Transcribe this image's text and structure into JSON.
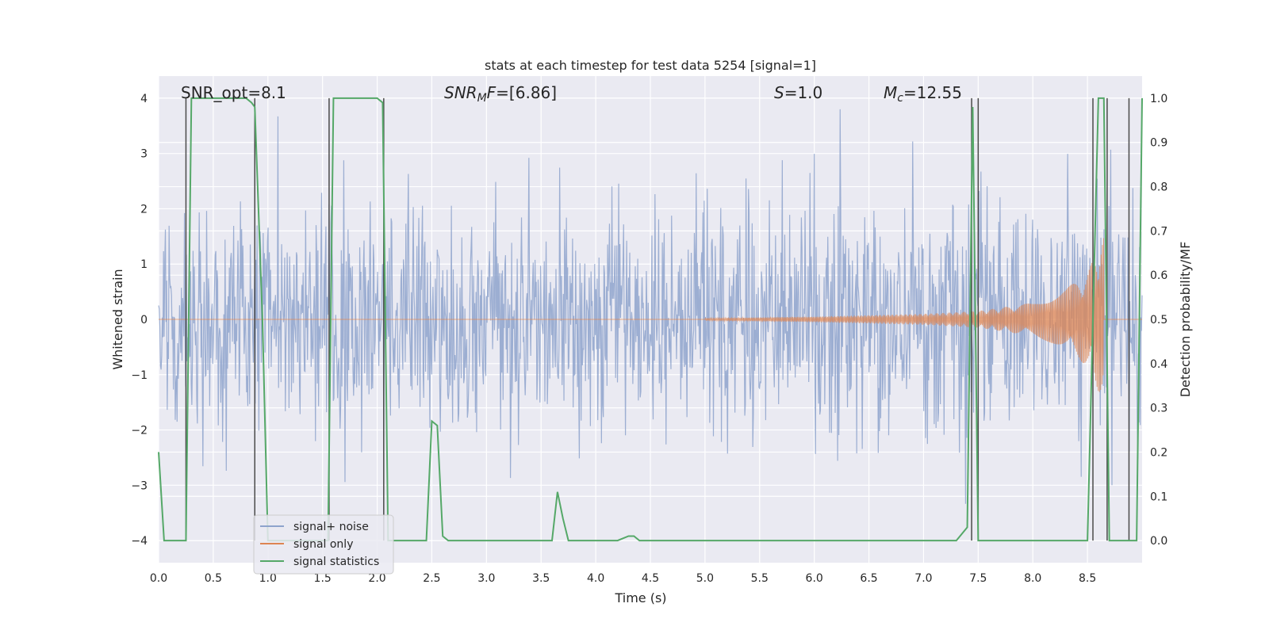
{
  "chart_data": {
    "type": "line",
    "title": "stats at each timestep for test data 5254 [signal=1]",
    "xlabel": "Time (s)",
    "ylabel": "Whitened strain",
    "y2label": "Detection probability/MF",
    "xlim": [
      0.0,
      9.0
    ],
    "ylim": [
      -4.4,
      4.4
    ],
    "y2lim": [
      -0.05,
      1.05
    ],
    "xticks": [
      "0.0",
      "0.5",
      "1.0",
      "1.5",
      "2.0",
      "2.5",
      "3.0",
      "3.5",
      "4.0",
      "4.5",
      "5.0",
      "5.5",
      "6.0",
      "6.5",
      "7.0",
      "7.5",
      "8.0",
      "8.5"
    ],
    "yticks": [
      "−4",
      "−3",
      "−2",
      "−1",
      "0",
      "1",
      "2",
      "3",
      "4"
    ],
    "y2ticks": [
      "0.0",
      "0.1",
      "0.2",
      "0.3",
      "0.4",
      "0.5",
      "0.6",
      "0.7",
      "0.8",
      "0.9",
      "1.0"
    ],
    "legend_position": "lower-left",
    "annotations": {
      "snr_opt": "SNR_opt=8.1",
      "snr_mf_prefix": "SNR",
      "snr_mf_sub": "M",
      "snr_mf_mid": "F",
      "snr_mf_value": "=[6.86]",
      "s_prefix": "S",
      "s_value": "=1.0",
      "mc_prefix": "M",
      "mc_sub": "c",
      "mc_value": "=12.55"
    },
    "colors": {
      "noise": "#8ea3cc",
      "signal": "#dd8452",
      "stats": "#55a868",
      "vline": "#4a4a4a",
      "plot_bg": "#eaeaf2"
    },
    "series": [
      {
        "name": "signal+ noise",
        "note": "whitened strain, noise-like, amplitude roughly ±2 with spikes to ±3.8"
      },
      {
        "name": "signal only",
        "note": "chirp starting ~5.0 s, amplitude growing to ~1.3 at ~8.6 s",
        "envelope_points": [
          [
            5.0,
            0.02
          ],
          [
            6.0,
            0.05
          ],
          [
            7.0,
            0.1
          ],
          [
            7.5,
            0.15
          ],
          [
            8.0,
            0.3
          ],
          [
            8.3,
            0.55
          ],
          [
            8.5,
            0.85
          ],
          [
            8.6,
            1.3
          ],
          [
            8.65,
            1.5
          ]
        ]
      },
      {
        "name": "signal statistics",
        "axis": "right",
        "x": [
          0.0,
          0.05,
          0.1,
          0.15,
          0.2,
          0.25,
          0.3,
          0.35,
          0.4,
          0.45,
          0.5,
          0.6,
          0.7,
          0.8,
          0.85,
          0.88,
          0.95,
          1.0,
          1.05,
          1.1,
          1.5,
          1.55,
          1.6,
          1.65,
          1.7,
          1.75,
          1.8,
          1.9,
          2.0,
          2.05,
          2.1,
          2.15,
          2.2,
          2.3,
          2.4,
          2.45,
          2.5,
          2.55,
          2.6,
          2.65,
          2.7,
          2.8,
          3.0,
          3.2,
          3.4,
          3.6,
          3.65,
          3.7,
          3.75,
          3.8,
          4.0,
          4.2,
          4.3,
          4.35,
          4.4,
          4.45,
          4.5,
          5.0,
          6.0,
          6.5,
          7.0,
          7.3,
          7.4,
          7.45,
          7.5,
          7.55,
          7.6,
          8.0,
          8.5,
          8.55,
          8.6,
          8.65,
          8.7,
          8.75,
          8.8,
          8.85,
          8.9,
          8.95,
          9.0
        ],
        "values": [
          0.2,
          0.0,
          0.0,
          0.0,
          0.0,
          0.0,
          1.0,
          1.0,
          1.0,
          1.0,
          1.0,
          1.0,
          1.0,
          1.0,
          0.99,
          0.98,
          0.5,
          0.0,
          0.0,
          0.0,
          0.0,
          0.0,
          1.0,
          1.0,
          1.0,
          1.0,
          1.0,
          1.0,
          1.0,
          0.99,
          0.0,
          0.0,
          0.0,
          0.0,
          0.0,
          0.0,
          0.27,
          0.26,
          0.01,
          0.0,
          0.0,
          0.0,
          0.0,
          0.0,
          0.0,
          0.0,
          0.11,
          0.05,
          0.0,
          0.0,
          0.0,
          0.0,
          0.01,
          0.01,
          0.0,
          0.0,
          0.0,
          0.0,
          0.0,
          0.0,
          0.0,
          0.0,
          0.03,
          0.98,
          0.0,
          0.0,
          0.0,
          0.0,
          0.0,
          0.5,
          1.0,
          1.0,
          0.0,
          0.0,
          0.0,
          0.0,
          0.0,
          0.0,
          1.0
        ]
      }
    ],
    "vertical_markers": [
      0.25,
      0.88,
      1.56,
      2.06,
      7.44,
      7.5,
      8.55,
      8.68,
      8.88
    ]
  },
  "legend": {
    "items": [
      "signal+ noise",
      "signal only",
      "signal statistics"
    ]
  }
}
